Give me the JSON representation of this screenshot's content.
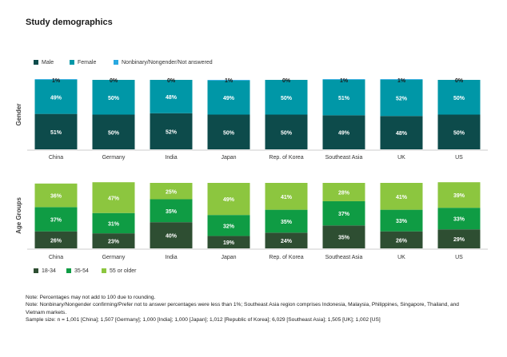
{
  "title": "Study demographics",
  "chart_data": [
    {
      "type": "bar",
      "stacked": true,
      "panel_label": "Gender",
      "categories": [
        "China",
        "Germany",
        "India",
        "Japan",
        "Rep. of Korea",
        "Southeast Asia",
        "UK",
        "US"
      ],
      "series": [
        {
          "name": "Male",
          "color": "#0d4b4b",
          "values": [
            51,
            50,
            52,
            50,
            50,
            49,
            48,
            50
          ],
          "labels": [
            "51%",
            "50%",
            "52%",
            "50%",
            "50%",
            "49%",
            "48%",
            "50%"
          ]
        },
        {
          "name": "Female",
          "color": "#0097a7",
          "values": [
            49,
            50,
            48,
            49,
            50,
            51,
            52,
            50
          ],
          "labels": [
            "49%",
            "50%",
            "48%",
            "49%",
            "50%",
            "51%",
            "52%",
            "50%"
          ]
        },
        {
          "name": "Nonbinary/Nongender/Not answered",
          "color": "#29a8e0",
          "values": [
            1,
            0,
            0,
            1,
            0,
            1,
            1,
            0
          ],
          "labels": [
            "1%",
            "0%",
            "0%",
            "1%",
            "0%",
            "1%",
            "1%",
            "0%"
          ]
        }
      ],
      "legend_position": "top-left"
    },
    {
      "type": "bar",
      "stacked": true,
      "panel_label": "Age Groups",
      "categories": [
        "China",
        "Germany",
        "India",
        "Japan",
        "Rep. of Korea",
        "Southeast Asia",
        "UK",
        "US"
      ],
      "series": [
        {
          "name": "18-34",
          "color": "#2e4e32",
          "values": [
            26,
            23,
            40,
            19,
            24,
            35,
            26,
            29
          ],
          "labels": [
            "26%",
            "23%",
            "40%",
            "19%",
            "24%",
            "35%",
            "26%",
            "29%"
          ]
        },
        {
          "name": "35-54",
          "color": "#0f9c44",
          "values": [
            37,
            31,
            35,
            32,
            35,
            37,
            33,
            33
          ],
          "labels": [
            "37%",
            "31%",
            "35%",
            "32%",
            "35%",
            "37%",
            "33%",
            "33%"
          ]
        },
        {
          "name": "55 or older",
          "color": "#8cc63f",
          "values": [
            36,
            47,
            25,
            49,
            41,
            28,
            41,
            39
          ],
          "labels": [
            "36%",
            "47%",
            "25%",
            "49%",
            "41%",
            "28%",
            "41%",
            "39%"
          ]
        }
      ],
      "legend_position": "bottom-left"
    }
  ],
  "notes": [
    "Note: Percentages may not add to 100 due to rounding.",
    "Note: Nonbinary/Nongender confirming/Prefer not to answer percentages were less than 1%; Southeast Asia region comprises Indonesia, Malaysia, Philippines, Singapore, Thailand, and Vietnam markets.",
    "Sample size: n = 1,001 [China]; 1,507 [Germany]; 1,000 [India]; 1,000 [Japan]; 1,012 [Republic of Korea]; 6,029 [Southeast Asia]; 1,505 [UK]; 1,002 [US]"
  ]
}
